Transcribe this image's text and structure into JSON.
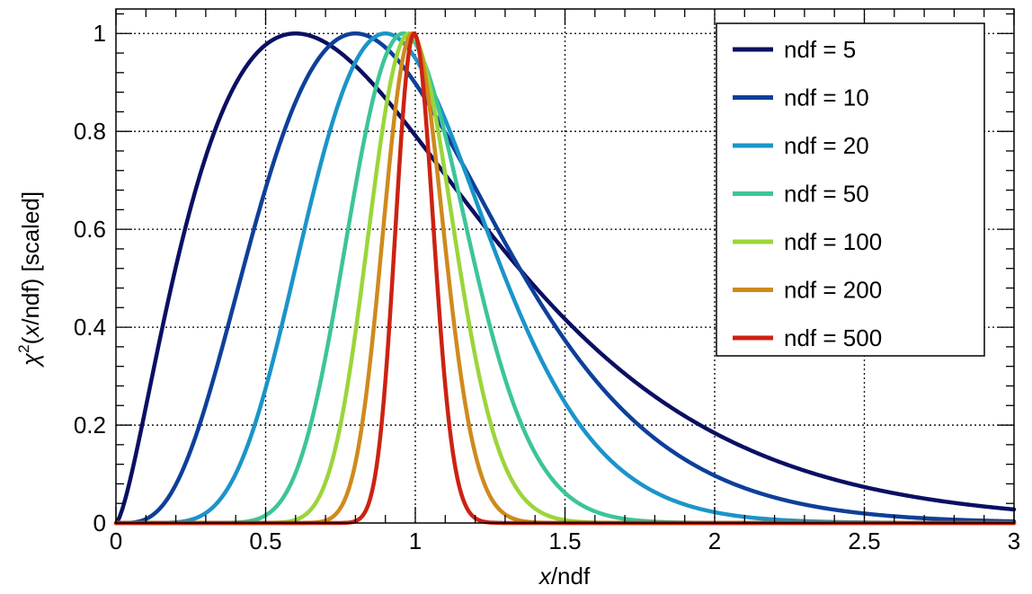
{
  "chart_data": {
    "type": "line",
    "title": "",
    "xlabel": {
      "italic": "x",
      "rest": "/ndf"
    },
    "ylabel": {
      "chi": "χ",
      "sup": "2",
      "open": "(",
      "italic": "x",
      "rest": "/ndf) [scaled]"
    },
    "xlim": [
      0,
      3
    ],
    "ylim": [
      0,
      1.05
    ],
    "x_ticks": [
      {
        "value": 0,
        "label": "0"
      },
      {
        "value": 0.5,
        "label": "0.5"
      },
      {
        "value": 1,
        "label": "1"
      },
      {
        "value": 1.5,
        "label": "1.5"
      },
      {
        "value": 2,
        "label": "2"
      },
      {
        "value": 2.5,
        "label": "2.5"
      },
      {
        "value": 3,
        "label": "3"
      }
    ],
    "y_ticks": [
      {
        "value": 0,
        "label": "0"
      },
      {
        "value": 0.2,
        "label": "0.2"
      },
      {
        "value": 0.4,
        "label": "0.4"
      },
      {
        "value": 0.6,
        "label": "0.6"
      },
      {
        "value": 0.8,
        "label": "0.8"
      },
      {
        "value": 1,
        "label": "1"
      }
    ],
    "grid": true,
    "legend_position": "top-right",
    "series": [
      {
        "name": "ndf = 5",
        "ndf": 5,
        "color": "#0b0f63"
      },
      {
        "name": "ndf = 10",
        "ndf": 10,
        "color": "#0e3f9a"
      },
      {
        "name": "ndf = 20",
        "ndf": 20,
        "color": "#1b94c9"
      },
      {
        "name": "ndf = 50",
        "ndf": 50,
        "color": "#3cc49a"
      },
      {
        "name": "ndf = 100",
        "ndf": 100,
        "color": "#9bd53a"
      },
      {
        "name": "ndf = 200",
        "ndf": 200,
        "color": "#cf8a1d"
      },
      {
        "name": "ndf = 500",
        "ndf": 500,
        "color": "#cc2212"
      }
    ]
  }
}
